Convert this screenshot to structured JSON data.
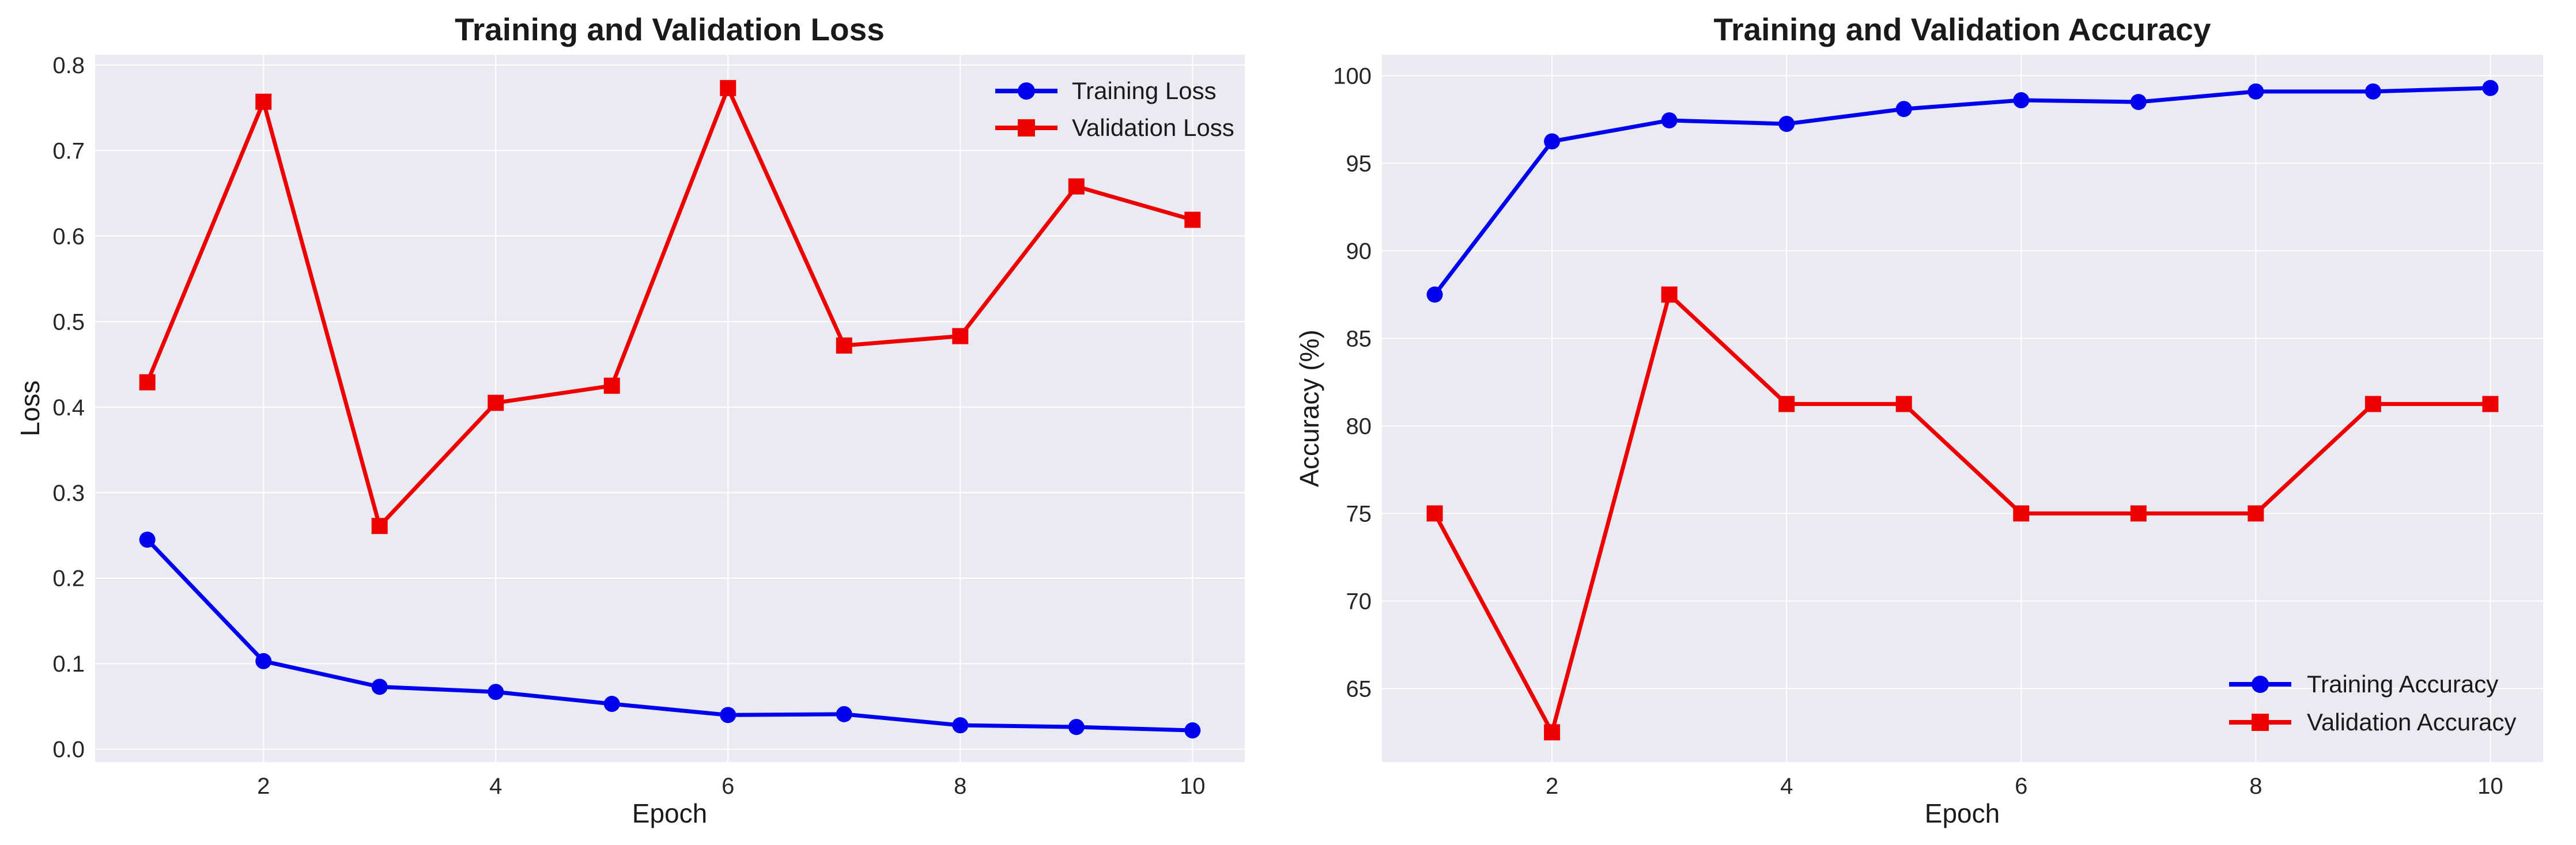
{
  "chart_data": [
    {
      "type": "line",
      "title": "Training and Validation Loss",
      "xlabel": "Epoch",
      "ylabel": "Loss",
      "x": [
        1,
        2,
        3,
        4,
        5,
        6,
        7,
        8,
        9,
        10
      ],
      "xticks": [
        2,
        4,
        6,
        8,
        10
      ],
      "yticks": [
        0.0,
        0.1,
        0.2,
        0.3,
        0.4,
        0.5,
        0.6,
        0.7,
        0.8
      ],
      "ytick_labels": [
        "0.0",
        "0.1",
        "0.2",
        "0.3",
        "0.4",
        "0.5",
        "0.6",
        "0.7",
        "0.8"
      ],
      "xlim": [
        0.55,
        10.45
      ],
      "ylim": [
        -0.015,
        0.812
      ],
      "grid": true,
      "legend_position": "top-right",
      "series": [
        {
          "name": "Training Loss",
          "color": "#0000ee",
          "marker": "circle",
          "values": [
            0.245,
            0.103,
            0.073,
            0.067,
            0.053,
            0.04,
            0.041,
            0.028,
            0.026,
            0.022
          ]
        },
        {
          "name": "Validation Loss",
          "color": "#ee0000",
          "marker": "square",
          "values": [
            0.429,
            0.757,
            0.261,
            0.405,
            0.425,
            0.773,
            0.472,
            0.483,
            0.658,
            0.619
          ]
        }
      ]
    },
    {
      "type": "line",
      "title": "Training and Validation Accuracy",
      "xlabel": "Epoch",
      "ylabel": "Accuracy (%)",
      "x": [
        1,
        2,
        3,
        4,
        5,
        6,
        7,
        8,
        9,
        10
      ],
      "xticks": [
        2,
        4,
        6,
        8,
        10
      ],
      "yticks": [
        65,
        70,
        75,
        80,
        85,
        90,
        95,
        100
      ],
      "ytick_labels": [
        "65",
        "70",
        "75",
        "80",
        "85",
        "90",
        "95",
        "100"
      ],
      "xlim": [
        0.55,
        10.45
      ],
      "ylim": [
        60.8,
        101.2
      ],
      "grid": true,
      "legend_position": "bottom-right",
      "series": [
        {
          "name": "Training Accuracy",
          "color": "#0000ee",
          "marker": "circle",
          "values": [
            87.5,
            96.25,
            97.45,
            97.25,
            98.1,
            98.6,
            98.5,
            99.1,
            99.1,
            99.3
          ]
        },
        {
          "name": "Validation Accuracy",
          "color": "#ee0000",
          "marker": "square",
          "values": [
            75.0,
            62.5,
            87.5,
            81.25,
            81.25,
            75.0,
            75.0,
            75.0,
            81.25,
            81.25
          ]
        }
      ]
    }
  ]
}
